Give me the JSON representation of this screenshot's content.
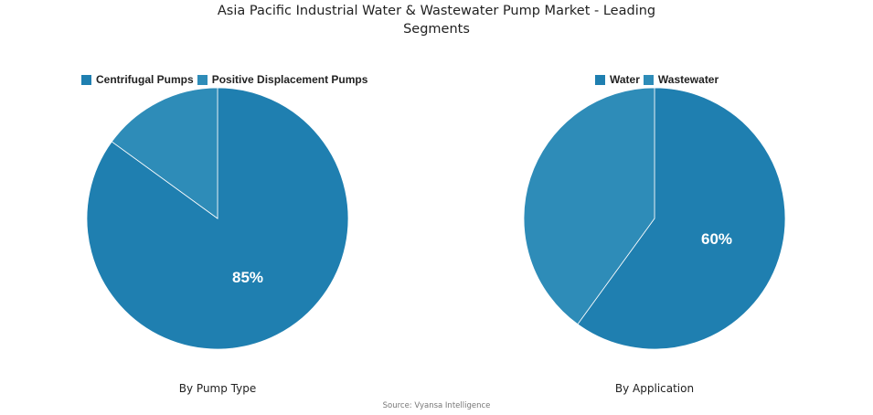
{
  "title": {
    "line1": "Asia Pacific Industrial Water & Wastewater Pump Market - Leading",
    "line2": "Segments"
  },
  "colors": {
    "primary": "#1f7fb0",
    "secondary": "#2e8cb8"
  },
  "source": "Source: Vyansa Intelligence",
  "charts": [
    {
      "subtitle": "By Pump Type",
      "legend": [
        "Centrifugal Pumps",
        "Positive Displacement Pumps"
      ],
      "label": "85%"
    },
    {
      "subtitle": "By Application",
      "legend": [
        "Water",
        "Wastewater"
      ],
      "label": "60%"
    }
  ],
  "chart_data": [
    {
      "type": "pie",
      "title": "By Pump Type",
      "categories": [
        "Centrifugal Pumps",
        "Positive Displacement Pumps"
      ],
      "values": [
        85,
        15
      ],
      "colors": [
        "#1f7fb0",
        "#2e8cb8"
      ],
      "data_labels": [
        "85%",
        ""
      ],
      "legend_position": "top"
    },
    {
      "type": "pie",
      "title": "By Application",
      "categories": [
        "Water",
        "Wastewater"
      ],
      "values": [
        60,
        40
      ],
      "colors": [
        "#1f7fb0",
        "#2e8cb8"
      ],
      "data_labels": [
        "60%",
        ""
      ],
      "legend_position": "top"
    }
  ]
}
